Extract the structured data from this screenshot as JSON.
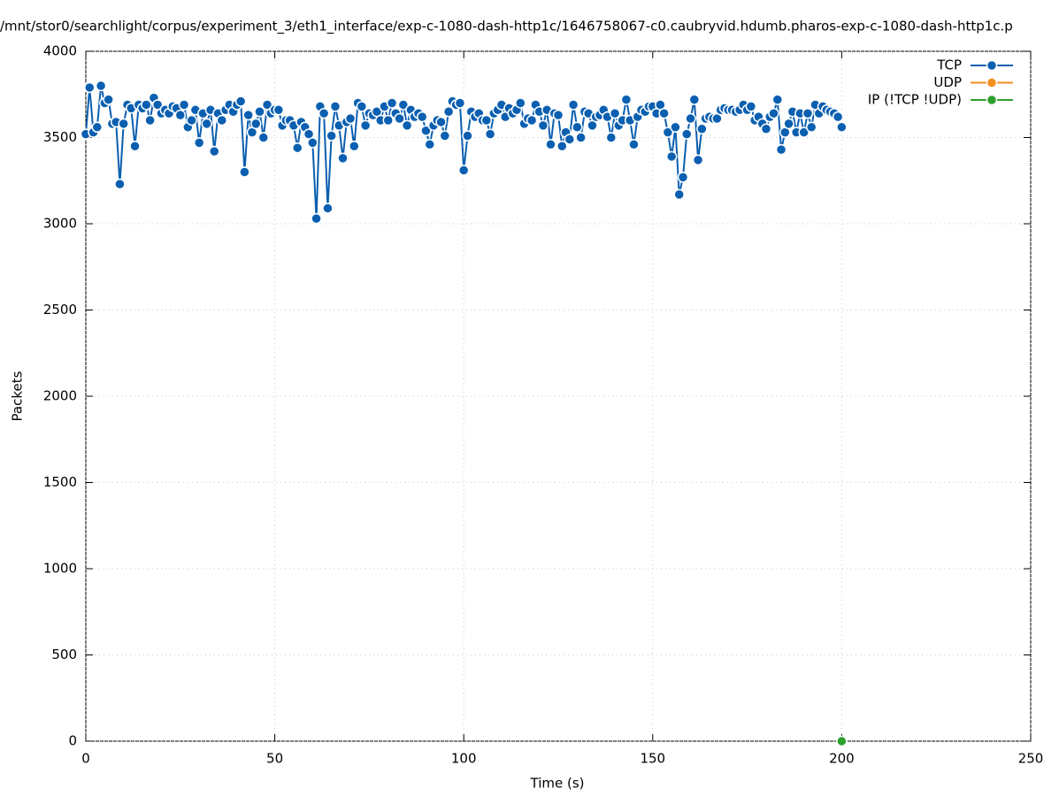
{
  "chart_data": {
    "type": "line",
    "title": "/mnt/stor0/searchlight/corpus/experiment_3/eth1_interface/exp-c-1080-dash-http1c/1646758067-c0.caubryvid.hdumb.pharos-exp-c-1080-dash-http1c.p",
    "xlabel": "Time (s)",
    "ylabel": "Packets",
    "xlim": [
      0,
      250
    ],
    "xticks": [
      0,
      50,
      100,
      150,
      200,
      250
    ],
    "ylim": [
      0,
      4000
    ],
    "yticks": [
      0,
      500,
      1000,
      1500,
      2000,
      2500,
      3000,
      3500,
      4000
    ],
    "grid": true,
    "legend": "top-right",
    "series": [
      {
        "name": "TCP",
        "color": "#0b5fb0",
        "x": [
          0,
          1,
          2,
          3,
          4,
          5,
          6,
          7,
          8,
          9,
          10,
          11,
          12,
          13,
          14,
          15,
          16,
          17,
          18,
          19,
          20,
          21,
          22,
          23,
          24,
          25,
          26,
          27,
          28,
          29,
          30,
          31,
          32,
          33,
          34,
          35,
          36,
          37,
          38,
          39,
          40,
          41,
          42,
          43,
          44,
          45,
          46,
          47,
          48,
          49,
          50,
          51,
          52,
          53,
          54,
          55,
          56,
          57,
          58,
          59,
          60,
          61,
          62,
          63,
          64,
          65,
          66,
          67,
          68,
          69,
          70,
          71,
          72,
          73,
          74,
          75,
          76,
          77,
          78,
          79,
          80,
          81,
          82,
          83,
          84,
          85,
          86,
          87,
          88,
          89,
          90,
          91,
          92,
          93,
          94,
          95,
          96,
          97,
          98,
          99,
          100,
          101,
          102,
          103,
          104,
          105,
          106,
          107,
          108,
          109,
          110,
          111,
          112,
          113,
          114,
          115,
          116,
          117,
          118,
          119,
          120,
          121,
          122,
          123,
          124,
          125,
          126,
          127,
          128,
          129,
          130,
          131,
          132,
          133,
          134,
          135,
          136,
          137,
          138,
          139,
          140,
          141,
          142,
          143,
          144,
          145,
          146,
          147,
          148,
          149,
          150,
          151,
          152,
          153,
          154,
          155,
          156,
          157,
          158,
          159,
          160,
          161,
          162,
          163,
          164,
          165,
          166,
          167,
          168,
          169,
          170,
          171,
          172,
          173,
          174,
          175,
          176,
          177,
          178,
          179,
          180,
          181,
          182,
          183,
          184,
          185,
          186,
          187,
          188,
          189,
          190,
          191,
          192,
          193,
          194,
          195,
          196,
          197,
          198,
          199,
          200
        ],
        "values": [
          3520,
          3790,
          3530,
          3560,
          3800,
          3700,
          3720,
          3580,
          3590,
          3230,
          3580,
          3690,
          3670,
          3450,
          3690,
          3670,
          3690,
          3600,
          3730,
          3690,
          3640,
          3660,
          3640,
          3680,
          3670,
          3630,
          3690,
          3560,
          3600,
          3660,
          3470,
          3640,
          3580,
          3660,
          3420,
          3640,
          3600,
          3660,
          3690,
          3650,
          3690,
          3710,
          3300,
          3630,
          3530,
          3580,
          3650,
          3500,
          3690,
          3640,
          3660,
          3660,
          3570,
          3600,
          3600,
          3570,
          3440,
          3590,
          3560,
          3520,
          3470,
          3030,
          3680,
          3640,
          3090,
          3510,
          3680,
          3570,
          3380,
          3590,
          3610,
          3450,
          3700,
          3680,
          3570,
          3640,
          3630,
          3650,
          3600,
          3680,
          3600,
          3700,
          3640,
          3610,
          3690,
          3570,
          3660,
          3620,
          3640,
          3620,
          3540,
          3460,
          3570,
          3600,
          3590,
          3510,
          3650,
          3710,
          3690,
          3700,
          3310,
          3510,
          3650,
          3620,
          3640,
          3600,
          3600,
          3520,
          3640,
          3660,
          3690,
          3620,
          3670,
          3640,
          3660,
          3700,
          3580,
          3610,
          3600,
          3690,
          3650,
          3570,
          3660,
          3460,
          3640,
          3630,
          3450,
          3530,
          3490,
          3690,
          3560,
          3500,
          3650,
          3640,
          3570,
          3620,
          3630,
          3660,
          3620,
          3500,
          3640,
          3570,
          3600,
          3720,
          3600,
          3460,
          3620,
          3660,
          3650,
          3680,
          3680,
          3640,
          3690,
          3640,
          3530,
          3390,
          3560,
          3170,
          3270,
          3520,
          3610,
          3720,
          3370,
          3550,
          3610,
          3620,
          3610,
          3610,
          3660,
          3670,
          3660,
          3660,
          3650,
          3660,
          3690,
          3660,
          3680,
          3600,
          3620,
          3580,
          3550,
          3620,
          3640,
          3720,
          3430,
          3530,
          3580,
          3650,
          3530,
          3640,
          3530,
          3640,
          3560,
          3690,
          3640,
          3680,
          3660,
          3650,
          3640,
          3620,
          3560
        ]
      },
      {
        "name": "UDP",
        "color": "#f28e1c",
        "x": [],
        "values": []
      },
      {
        "name": "IP (!TCP  !UDP)",
        "color": "#2ca02c",
        "x": [
          200
        ],
        "values": [
          0
        ]
      }
    ]
  }
}
